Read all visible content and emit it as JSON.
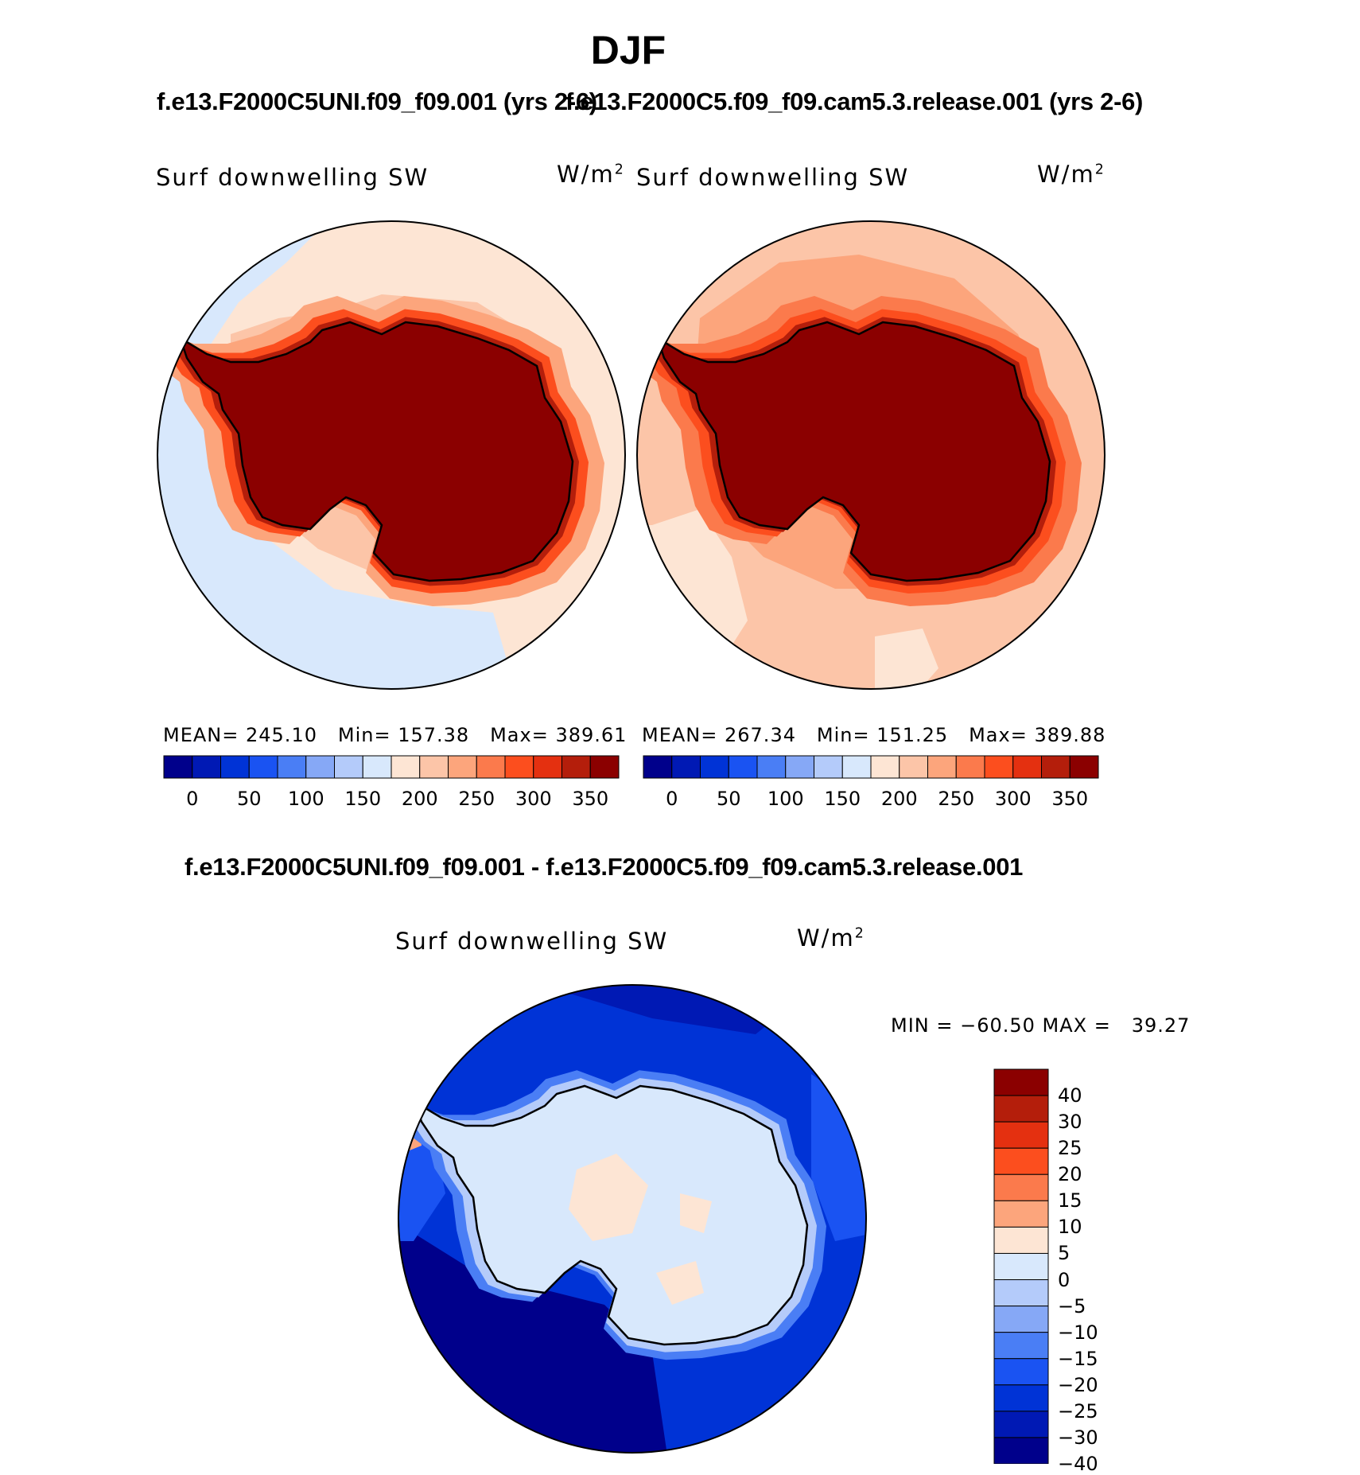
{
  "figure": {
    "season": "DJF",
    "case_a": "f.e13.F2000C5UNI.f09_f09.001 (yrs 2-6)",
    "case_b": "f.e13.F2000C5.f09_f09.cam5.3.release.001 (yrs 2-6)",
    "diff_title": "f.e13.F2000C5UNI.f09_f09.001 - f.e13.F2000C5.f09_f09.cam5.3.release.001"
  },
  "panels": [
    {
      "variable": "Surf downwelling SW",
      "units_base": "W/m",
      "units_exp": "2",
      "mean_label": "MEAN=",
      "mean": "245.10",
      "min_label": "Min=",
      "min": "157.38",
      "max_label": "Max=",
      "max": "389.61"
    },
    {
      "variable": "Surf downwelling SW",
      "units_base": "W/m",
      "units_exp": "2",
      "mean_label": "MEAN=",
      "mean": "267.34",
      "min_label": "Min=",
      "min": "151.25",
      "max_label": "Max=",
      "max": "389.88"
    }
  ],
  "diff_panel": {
    "variable": "Surf downwelling SW",
    "units_base": "W/m",
    "units_exp": "2",
    "minmax": "MIN = −60.50 MAX =   39.27"
  },
  "colorbar_abs": {
    "colors": [
      "#00008b",
      "#0019b4",
      "#0033d6",
      "#1a53f2",
      "#4a7ef5",
      "#86a8f6",
      "#b4cbfa",
      "#d8e8fc",
      "#fde5d4",
      "#fcc5a8",
      "#fca57c",
      "#fb7a4c",
      "#fc4e1e",
      "#e43010",
      "#b41e0b",
      "#8b0000"
    ],
    "ticks": [
      "0",
      "50",
      "100",
      "150",
      "200",
      "250",
      "300",
      "350"
    ]
  },
  "colorbar_diff": {
    "colors_top_to_bottom": [
      "#8b0000",
      "#b41e0b",
      "#e43010",
      "#fc4e1e",
      "#fb7a4c",
      "#fca57c",
      "#fde5d4",
      "#d8e8fc",
      "#b4cbfa",
      "#86a8f6",
      "#4a7ef5",
      "#1a53f2",
      "#0033d6",
      "#0019b4",
      "#00008b"
    ],
    "ticks": [
      "40",
      "30",
      "25",
      "20",
      "15",
      "10",
      "5",
      "0",
      "−5",
      "−10",
      "−15",
      "−20",
      "−25",
      "−30",
      "−40"
    ]
  }
}
